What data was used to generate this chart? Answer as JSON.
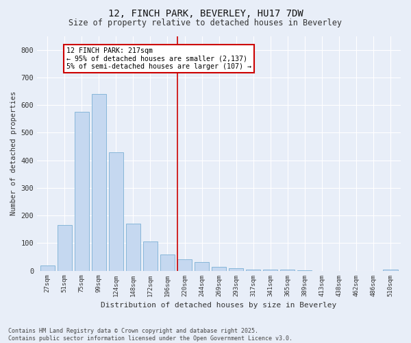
{
  "title_line1": "12, FINCH PARK, BEVERLEY, HU17 7DW",
  "title_line2": "Size of property relative to detached houses in Beverley",
  "xlabel": "Distribution of detached houses by size in Beverley",
  "ylabel": "Number of detached properties",
  "categories": [
    "27sqm",
    "51sqm",
    "75sqm",
    "99sqm",
    "124sqm",
    "148sqm",
    "172sqm",
    "196sqm",
    "220sqm",
    "244sqm",
    "269sqm",
    "293sqm",
    "317sqm",
    "341sqm",
    "365sqm",
    "389sqm",
    "413sqm",
    "438sqm",
    "462sqm",
    "486sqm",
    "510sqm"
  ],
  "values": [
    18,
    165,
    575,
    640,
    430,
    170,
    105,
    58,
    42,
    30,
    15,
    10,
    5,
    5,
    3,
    2,
    0,
    0,
    0,
    0,
    5
  ],
  "bar_color": "#c5d8f0",
  "bar_edge_color": "#7bafd4",
  "background_color": "#e8eef8",
  "grid_color": "#ffffff",
  "vline_color": "#cc0000",
  "annotation_text": "12 FINCH PARK: 217sqm\n← 95% of detached houses are smaller (2,137)\n5% of semi-detached houses are larger (107) →",
  "annotation_box_color": "#ffffff",
  "annotation_box_edge_color": "#cc0000",
  "ylim": [
    0,
    850
  ],
  "yticks": [
    0,
    100,
    200,
    300,
    400,
    500,
    600,
    700,
    800
  ],
  "footnote_line1": "Contains HM Land Registry data © Crown copyright and database right 2025.",
  "footnote_line2": "Contains public sector information licensed under the Open Government Licence v3.0."
}
